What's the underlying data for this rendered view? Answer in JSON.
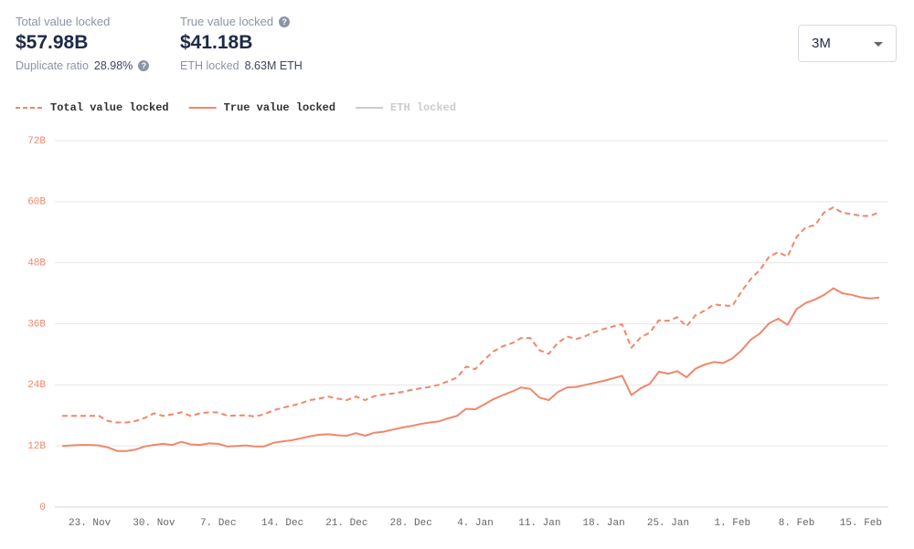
{
  "header": {
    "stats": [
      {
        "label": "Total value locked",
        "value": "$57.98B"
      },
      {
        "label": "True value locked",
        "value": "$41.18B"
      }
    ],
    "duplicate_ratio": {
      "label": "Duplicate ratio",
      "value": "28.98%"
    },
    "eth_locked": {
      "label": "ETH locked",
      "value": "8.63M ETH"
    },
    "range": "3M"
  },
  "chart_data": {
    "type": "line",
    "categories": [
      null,
      null,
      null,
      "23. Nov",
      null,
      null,
      null,
      null,
      null,
      null,
      "30. Nov",
      null,
      null,
      null,
      null,
      null,
      null,
      "7. Dec",
      null,
      null,
      null,
      null,
      null,
      null,
      "14. Dec",
      null,
      null,
      null,
      null,
      null,
      null,
      "21. Dec",
      null,
      null,
      null,
      null,
      null,
      null,
      "28. Dec",
      null,
      null,
      null,
      null,
      null,
      null,
      "4. Jan",
      null,
      null,
      null,
      null,
      null,
      null,
      "11. Jan",
      null,
      null,
      null,
      null,
      null,
      null,
      "18. Jan",
      null,
      null,
      null,
      null,
      null,
      null,
      "25. Jan",
      null,
      null,
      null,
      null,
      null,
      null,
      "1. Feb",
      null,
      null,
      null,
      null,
      null,
      null,
      "8. Feb",
      null,
      null,
      null,
      null,
      null,
      null,
      "15. Feb",
      null,
      null
    ],
    "series": [
      {
        "name": "Total value locked",
        "color": "#f0876a",
        "line_style": "dashed",
        "values": [
          17.9,
          17.9,
          17.9,
          17.9,
          17.9,
          16.9,
          16.6,
          16.6,
          16.9,
          17.5,
          18.4,
          17.9,
          18.2,
          18.6,
          17.9,
          18.4,
          18.6,
          18.6,
          17.9,
          18.0,
          18.0,
          17.8,
          18.2,
          19.0,
          19.5,
          19.9,
          20.4,
          21.0,
          21.3,
          21.7,
          21.3,
          21.0,
          21.7,
          21.0,
          21.8,
          22.1,
          22.3,
          22.6,
          23.0,
          23.3,
          23.6,
          24.0,
          24.7,
          25.4,
          27.6,
          27.1,
          29.0,
          30.6,
          31.6,
          32.2,
          33.2,
          33.2,
          30.8,
          30.1,
          32.3,
          33.5,
          33.0,
          33.6,
          34.4,
          35.0,
          35.5,
          35.9,
          31.3,
          33.3,
          34.3,
          36.7,
          36.6,
          37.3,
          35.5,
          37.7,
          38.6,
          39.8,
          39.6,
          39.5,
          42.4,
          44.8,
          46.6,
          49.2,
          50.1,
          49.2,
          53.1,
          55.0,
          55.4,
          57.9,
          58.9,
          57.8,
          57.6,
          57.2,
          57.2,
          57.98
        ]
      },
      {
        "name": "True value locked",
        "color": "#f0876a",
        "line_style": "solid",
        "values": [
          12.0,
          12.1,
          12.2,
          12.2,
          12.1,
          11.7,
          11.0,
          11.0,
          11.3,
          11.9,
          12.2,
          12.4,
          12.2,
          12.8,
          12.3,
          12.2,
          12.5,
          12.4,
          11.9,
          12.0,
          12.1,
          11.9,
          11.9,
          12.6,
          12.9,
          13.1,
          13.5,
          13.9,
          14.2,
          14.3,
          14.1,
          14.0,
          14.5,
          14.0,
          14.6,
          14.8,
          15.2,
          15.6,
          15.9,
          16.3,
          16.6,
          16.8,
          17.4,
          17.9,
          19.3,
          19.2,
          20.2,
          21.2,
          22.0,
          22.7,
          23.5,
          23.2,
          21.5,
          21.0,
          22.6,
          23.5,
          23.6,
          24.0,
          24.4,
          24.8,
          25.3,
          25.8,
          22.0,
          23.3,
          24.2,
          26.6,
          26.2,
          26.7,
          25.5,
          27.2,
          28.0,
          28.5,
          28.3,
          29.2,
          30.8,
          32.9,
          34.1,
          36.1,
          37.0,
          35.8,
          38.9,
          40.1,
          40.8,
          41.7,
          43.0,
          42.0,
          41.7,
          41.2,
          41.0,
          41.18
        ]
      },
      {
        "name": "ETH locked",
        "color": "#cccccc",
        "visible": false
      }
    ],
    "ylim": [
      0,
      72
    ],
    "yticks": [
      0,
      {
        "value": 12,
        "label": "12B"
      },
      {
        "value": 24,
        "label": "24B"
      },
      {
        "value": 36,
        "label": "36B"
      },
      {
        "value": 48,
        "label": "48B"
      },
      {
        "value": 60,
        "label": "60B"
      },
      {
        "value": 72,
        "label": "72B"
      }
    ],
    "grid": true
  }
}
